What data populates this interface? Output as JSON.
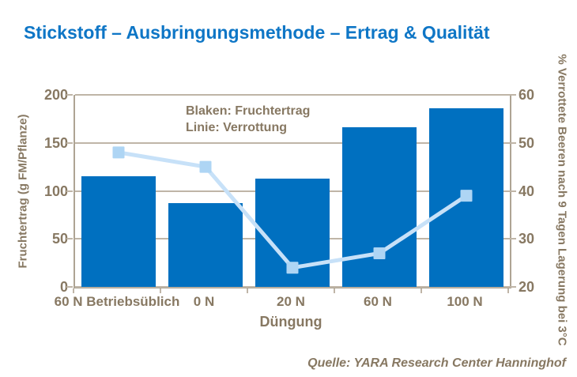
{
  "title": "Stickstoff – Ausbringungsmethode – Ertrag & Qualität",
  "source": "Quelle: YARA Research Center Hanninghof",
  "legend": {
    "line1": "Blaken: Fruchtertrag",
    "line2": "Linie: Verrottung"
  },
  "colors": {
    "title": "#0E76C6",
    "bar": "#0070C0",
    "line": "#C7E1F8",
    "marker": "#AED5F4",
    "axis_text": "#877862",
    "grid": "#BFB5A7",
    "axis": "#AEA494",
    "background": "#FFFFFF"
  },
  "chart_data": {
    "type": "bar",
    "categories": [
      "60 N Betriebsüblich",
      "0 N",
      "20 N",
      "60 N",
      "100 N"
    ],
    "series": [
      {
        "name": "Fruchtertrag",
        "type": "bar",
        "axis": "left",
        "values": [
          115,
          87,
          113,
          166,
          186
        ]
      },
      {
        "name": "Verrottung",
        "type": "line",
        "axis": "right",
        "values": [
          48,
          45,
          24,
          27,
          39
        ]
      }
    ],
    "title": "Stickstoff – Ausbringungsmethode – Ertrag & Qualität",
    "xlabel": "Düngung",
    "ylabel_left": "Fruchtertrag (g FM/Pflanze)",
    "ylabel_right": "% Verrottete Beeren nach 9 Tagen Lagerung bei 3°C",
    "ylim_left": [
      0,
      200
    ],
    "ylim_right": [
      20,
      60
    ],
    "yticks_left": [
      200,
      150,
      100,
      50,
      0
    ],
    "yticks_right": [
      60,
      50,
      40,
      30,
      20
    ],
    "grid": true,
    "legend_position": "top-inside"
  }
}
